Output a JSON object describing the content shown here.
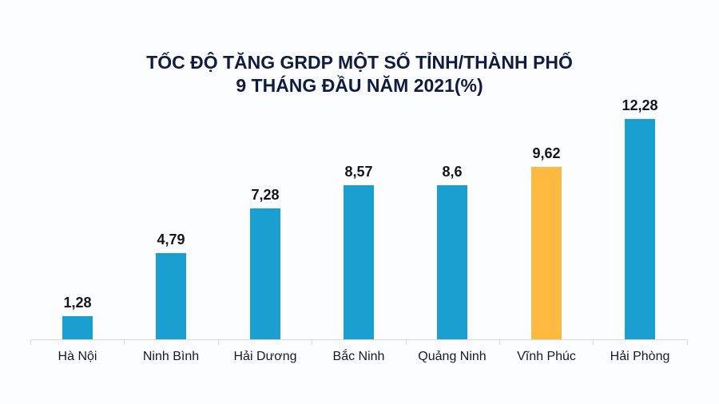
{
  "title": {
    "line1": "TỐC ĐỘ TĂNG GRDP MỘT SỐ TỈNH/THÀNH PHỐ",
    "line2": "9 THÁNG ĐẦU NĂM 2021(%)"
  },
  "colors": {
    "bar_default": "#1a9fd0",
    "bar_highlight": "#fdb940",
    "title": "#0f1c3f"
  },
  "bars": [
    {
      "label": "Hà Nội",
      "value_label": "1,28"
    },
    {
      "label": "Ninh Bình",
      "value_label": "4,79"
    },
    {
      "label": "Hải Dương",
      "value_label": "7,28"
    },
    {
      "label": "Bắc Ninh",
      "value_label": "8,57"
    },
    {
      "label": "Quảng Ninh",
      "value_label": "8,6"
    },
    {
      "label": "Vĩnh Phúc",
      "value_label": "9,62"
    },
    {
      "label": "Hải Phòng",
      "value_label": "12,28"
    }
  ],
  "chart_data": {
    "type": "bar",
    "title": "TỐC ĐỘ TĂNG GRDP MỘT SỐ TỈNH/THÀNH PHỐ 9 THÁNG ĐẦU NĂM 2021(%)",
    "categories": [
      "Hà Nội",
      "Ninh Bình",
      "Hải Dương",
      "Bắc Ninh",
      "Quảng Ninh",
      "Vĩnh Phúc",
      "Hải Phòng"
    ],
    "values": [
      1.28,
      4.79,
      7.28,
      8.57,
      8.6,
      9.62,
      12.28
    ],
    "data_labels": [
      "1,28",
      "4,79",
      "7,28",
      "8,57",
      "8,6",
      "9,62",
      "12,28"
    ],
    "highlight": {
      "category": "Vĩnh Phúc",
      "color": "#fdb940"
    },
    "xlabel": "",
    "ylabel": "",
    "ylim": [
      0,
      12.28
    ],
    "grid": false,
    "legend": null
  }
}
